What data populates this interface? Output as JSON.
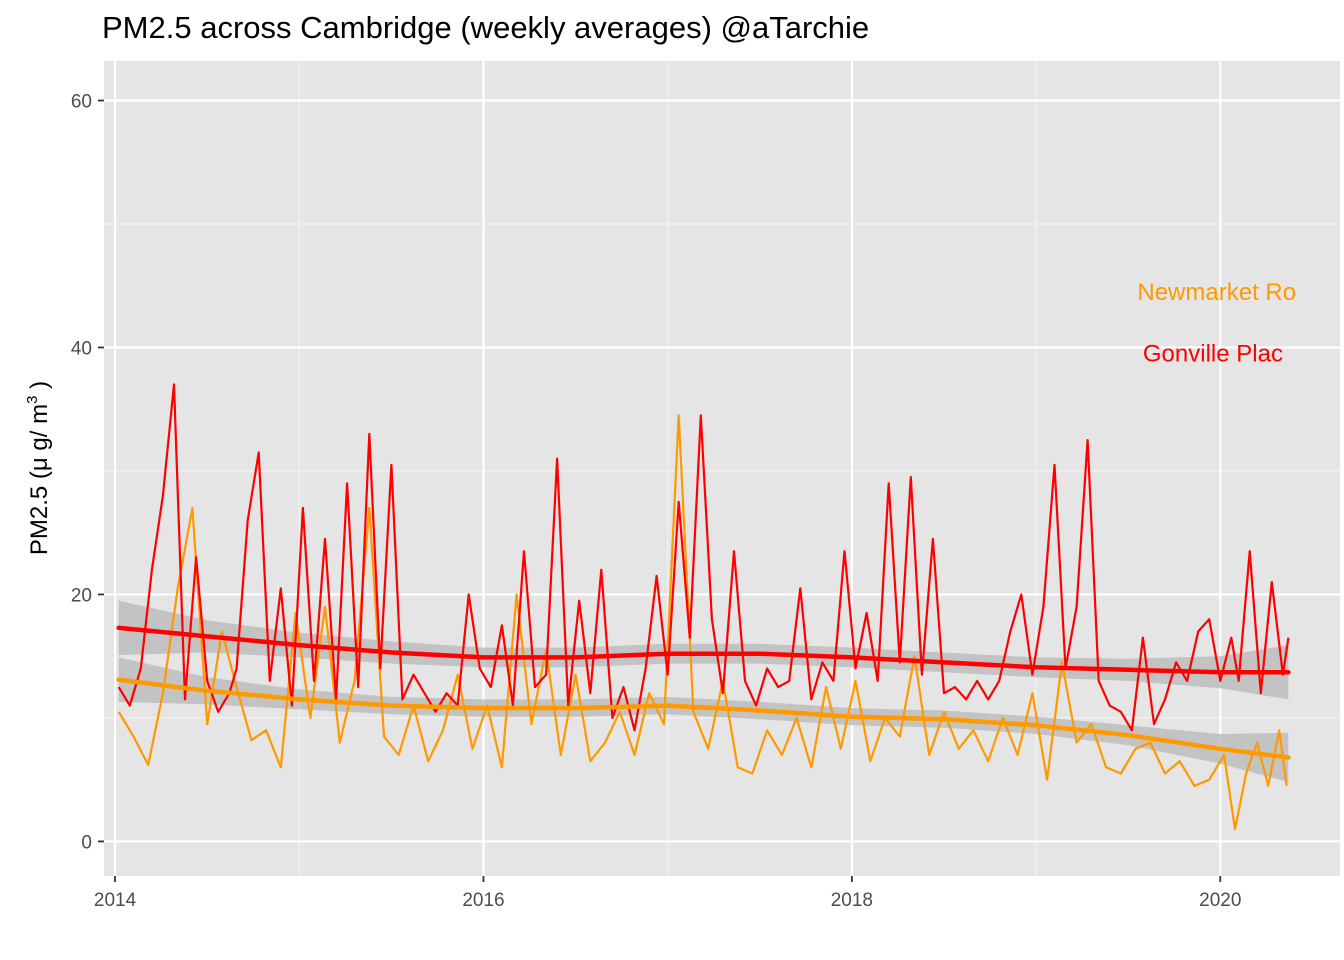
{
  "chart_data": {
    "type": "line",
    "title": "PM2.5 across Cambridge (weekly averages)  @aTarchie",
    "xlabel": "",
    "ylabel": "PM2.5 (μ g/ m³ )",
    "ylabel_parts": {
      "main": "PM2.5 (μ g/ m",
      "sup": "3",
      "close": " )"
    },
    "xlim": [
      2013.94,
      2020.65
    ],
    "ylim": [
      -2.8,
      63.2
    ],
    "x_ticks": [
      {
        "value": 2014,
        "label": "2014"
      },
      {
        "value": 2016,
        "label": "2016"
      },
      {
        "value": 2018,
        "label": "2018"
      },
      {
        "value": 2020,
        "label": "2020"
      }
    ],
    "y_ticks": [
      {
        "value": 0,
        "label": "0"
      },
      {
        "value": 20,
        "label": "20"
      },
      {
        "value": 40,
        "label": "40"
      },
      {
        "value": 60,
        "label": "60"
      }
    ],
    "grid": true,
    "legend": "none",
    "panel_background": "#e5e5e5",
    "ribbon_color": "#bdbdbd",
    "series": [
      {
        "name": "Newmarket Road",
        "label_visible": "Newmarket Ro",
        "label_at": {
          "x": 2019.55,
          "y": 44.5
        },
        "color": "#ff9900",
        "x": [
          2014.02,
          2014.1,
          2014.18,
          2014.26,
          2014.34,
          2014.42,
          2014.5,
          2014.58,
          2014.66,
          2014.74,
          2014.82,
          2014.9,
          2014.98,
          2015.06,
          2015.14,
          2015.22,
          2015.3,
          2015.38,
          2015.46,
          2015.54,
          2015.62,
          2015.7,
          2015.78,
          2015.86,
          2015.94,
          2016.02,
          2016.1,
          2016.18,
          2016.26,
          2016.34,
          2016.42,
          2016.5,
          2016.58,
          2016.66,
          2016.74,
          2016.82,
          2016.9,
          2016.98,
          2017.06,
          2017.14,
          2017.22,
          2017.3,
          2017.38,
          2017.46,
          2017.54,
          2017.62,
          2017.7,
          2017.78,
          2017.86,
          2017.94,
          2018.02,
          2018.1,
          2018.18,
          2018.26,
          2018.34,
          2018.42,
          2018.5,
          2018.58,
          2018.66,
          2018.74,
          2018.82,
          2018.9,
          2018.98,
          2019.06,
          2019.14,
          2019.22,
          2019.3,
          2019.38,
          2019.46,
          2019.54,
          2019.62,
          2019.7,
          2019.78,
          2019.86,
          2019.94,
          2020.02,
          2020.08,
          2020.14,
          2020.2,
          2020.26,
          2020.32,
          2020.36
        ],
        "values": [
          10.5,
          8.5,
          6.2,
          12.0,
          20.5,
          27.0,
          9.5,
          17.0,
          12.5,
          8.2,
          9.0,
          6.0,
          18.5,
          10.0,
          19.0,
          8.0,
          13.0,
          27.0,
          8.5,
          7.0,
          11.0,
          6.5,
          9.0,
          13.5,
          7.5,
          11.0,
          6.0,
          20.0,
          9.5,
          15.5,
          7.0,
          13.5,
          6.5,
          8.0,
          10.5,
          7.0,
          12.0,
          9.5,
          34.5,
          10.5,
          7.5,
          13.0,
          6.0,
          5.5,
          9.0,
          7.0,
          10.0,
          6.0,
          12.5,
          7.5,
          13.0,
          6.5,
          10.0,
          8.5,
          15.0,
          7.0,
          10.5,
          7.5,
          9.0,
          6.5,
          10.0,
          7.0,
          12.0,
          5.0,
          14.5,
          8.0,
          9.5,
          6.0,
          5.5,
          7.5,
          8.0,
          5.5,
          6.5,
          4.5,
          5.0,
          7.0,
          1.0,
          5.5,
          8.0,
          4.5,
          9.0,
          4.5
        ]
      },
      {
        "name": "Gonville Place",
        "label_visible": "Gonville Plac",
        "label_at": {
          "x": 2019.58,
          "y": 39.5
        },
        "color": "#ff0000",
        "x": [
          2014.02,
          2014.08,
          2014.14,
          2014.2,
          2014.26,
          2014.32,
          2014.38,
          2014.44,
          2014.5,
          2014.56,
          2014.62,
          2014.66,
          2014.72,
          2014.78,
          2014.84,
          2014.9,
          2014.96,
          2015.02,
          2015.08,
          2015.14,
          2015.2,
          2015.26,
          2015.32,
          2015.38,
          2015.44,
          2015.5,
          2015.56,
          2015.62,
          2015.68,
          2015.74,
          2015.8,
          2015.86,
          2015.92,
          2015.98,
          2016.04,
          2016.1,
          2016.16,
          2016.22,
          2016.28,
          2016.34,
          2016.4,
          2016.46,
          2016.52,
          2016.58,
          2016.64,
          2016.7,
          2016.76,
          2016.82,
          2016.88,
          2016.94,
          2017.0,
          2017.06,
          2017.12,
          2017.18,
          2017.24,
          2017.3,
          2017.36,
          2017.42,
          2017.48,
          2017.54,
          2017.6,
          2017.66,
          2017.72,
          2017.78,
          2017.84,
          2017.9,
          2017.96,
          2018.02,
          2018.08,
          2018.14,
          2018.2,
          2018.26,
          2018.32,
          2018.38,
          2018.44,
          2018.5,
          2018.56,
          2018.62,
          2018.68,
          2018.74,
          2018.8,
          2018.86,
          2018.92,
          2018.98,
          2019.04,
          2019.1,
          2019.16,
          2019.22,
          2019.28,
          2019.34,
          2019.4,
          2019.46,
          2019.52,
          2019.58,
          2019.64,
          2019.7,
          2019.76,
          2019.82,
          2019.88,
          2019.94,
          2020.0,
          2020.06,
          2020.1,
          2020.16,
          2020.22,
          2020.28,
          2020.34,
          2020.37
        ],
        "values": [
          12.5,
          11.0,
          14.0,
          22.0,
          28.0,
          37.0,
          11.5,
          23.0,
          13.0,
          10.5,
          12.0,
          14.0,
          26.0,
          31.5,
          13.0,
          20.5,
          11.0,
          27.0,
          13.0,
          24.5,
          11.5,
          29.0,
          12.5,
          33.0,
          14.0,
          30.5,
          11.5,
          13.5,
          12.0,
          10.5,
          12.0,
          11.0,
          20.0,
          14.0,
          12.5,
          17.5,
          11.0,
          23.5,
          12.5,
          13.5,
          31.0,
          11.0,
          19.5,
          12.0,
          22.0,
          10.0,
          12.5,
          9.0,
          14.0,
          21.5,
          13.5,
          27.5,
          16.5,
          34.5,
          18.0,
          12.0,
          23.5,
          13.0,
          11.0,
          14.0,
          12.5,
          13.0,
          20.5,
          11.5,
          14.5,
          13.0,
          23.5,
          14.0,
          18.5,
          13.0,
          29.0,
          14.5,
          29.5,
          13.5,
          24.5,
          12.0,
          12.5,
          11.5,
          13.0,
          11.5,
          13.0,
          17.0,
          20.0,
          13.5,
          19.0,
          30.5,
          14.0,
          19.0,
          32.5,
          13.0,
          11.0,
          10.5,
          9.0,
          16.5,
          9.5,
          11.5,
          14.5,
          13.0,
          17.0,
          18.0,
          13.0,
          16.5,
          13.0,
          23.5,
          12.0,
          21.0,
          13.5,
          16.5
        ]
      }
    ],
    "smooth": [
      {
        "name": "Newmarket Road smooth",
        "color": "#ff9900",
        "x": [
          2014.02,
          2014.5,
          2015.0,
          2015.5,
          2016.0,
          2016.5,
          2017.0,
          2017.5,
          2018.0,
          2018.5,
          2019.0,
          2019.5,
          2020.0,
          2020.37
        ],
        "y": [
          13.1,
          12.2,
          11.5,
          11.0,
          10.8,
          10.8,
          11.0,
          10.6,
          10.1,
          9.9,
          9.4,
          8.6,
          7.5,
          6.8
        ],
        "se": [
          1.8,
          1.1,
          0.8,
          0.7,
          0.7,
          0.7,
          0.7,
          0.7,
          0.7,
          0.7,
          0.7,
          0.8,
          1.2,
          2.0
        ]
      },
      {
        "name": "Gonville Place smooth",
        "color": "#ff0000",
        "x": [
          2014.02,
          2014.5,
          2015.0,
          2015.5,
          2016.0,
          2016.5,
          2017.0,
          2017.5,
          2018.0,
          2018.5,
          2019.0,
          2019.5,
          2020.0,
          2020.37
        ],
        "y": [
          17.3,
          16.6,
          15.9,
          15.3,
          14.9,
          14.9,
          15.2,
          15.2,
          14.9,
          14.5,
          14.1,
          13.9,
          13.7,
          13.7
        ],
        "se": [
          2.2,
          1.3,
          1.0,
          0.9,
          0.8,
          0.8,
          0.8,
          0.8,
          0.8,
          0.8,
          0.8,
          0.9,
          1.3,
          2.2
        ]
      }
    ]
  }
}
